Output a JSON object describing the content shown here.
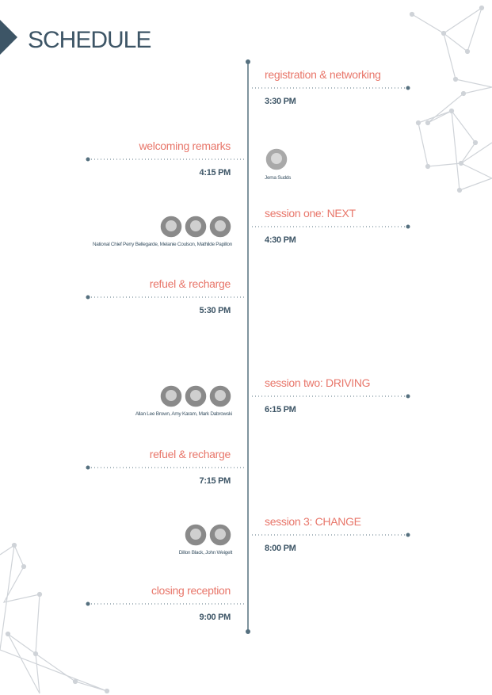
{
  "header": {
    "title": "SCHEDULE"
  },
  "items": [
    {
      "title": "registration & networking",
      "time": "3:30 PM"
    },
    {
      "title": "welcoming remarks",
      "time": "4:15 PM",
      "speakers": "Jema Sudds"
    },
    {
      "title": "session one: NEXT",
      "time": "4:30 PM",
      "speakers": "National Chief Perry Bellegarde, Melanie Coulson, Mathilde Papillon"
    },
    {
      "title": "refuel & recharge",
      "time": "5:30 PM"
    },
    {
      "title": "session two: DRIVING",
      "time": "6:15 PM",
      "speakers": "Allan Lee Brown, Amy Karam, Mark Dabrowski"
    },
    {
      "title": "refuel & recharge",
      "time": "7:15 PM"
    },
    {
      "title": "session 3: CHANGE",
      "time": "8:00 PM",
      "speakers": "Dillon Black, John Weigelt"
    },
    {
      "title": "closing reception",
      "time": "9:00 PM"
    }
  ]
}
